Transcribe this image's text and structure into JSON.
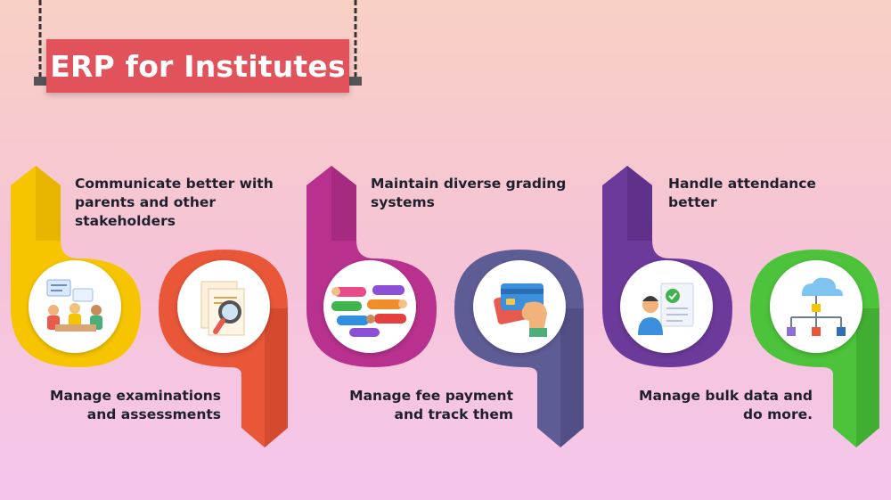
{
  "title": "ERP for Institutes",
  "colors": {
    "yellow": "#f7c500",
    "orange": "#e95638",
    "magenta": "#b8318e",
    "slate": "#5e5c95",
    "purple": "#6c3a9a",
    "green": "#4cc33b",
    "banner": "#e2525a"
  },
  "features": [
    {
      "text": "Communicate better with\nparents and other\nstakeholders",
      "icon": "meeting-icon"
    },
    {
      "text": "Manage examinations\nand assessments",
      "icon": "document-search-icon"
    },
    {
      "text": "Maintain diverse grading\nsystems",
      "icon": "grading-chat-icon"
    },
    {
      "text": "Manage fee payment\nand track them",
      "icon": "credit-card-icon"
    },
    {
      "text": "Handle attendance\nbetter",
      "icon": "attendance-checklist-icon"
    },
    {
      "text": "Manage bulk data and\ndo more.",
      "icon": "cloud-network-icon"
    }
  ]
}
